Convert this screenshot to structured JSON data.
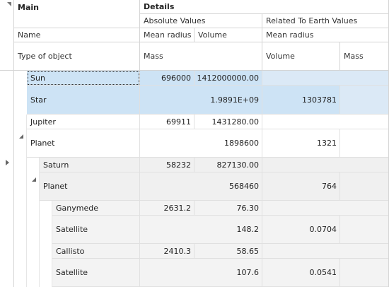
{
  "bands": {
    "main": "Main",
    "details": "Details",
    "absolute": "Absolute Values",
    "related": "Related To Earth Values"
  },
  "columns": {
    "name": "Name",
    "type": "Type of object",
    "abs_mean_radius": "Mean radius",
    "abs_volume": "Volume",
    "abs_mass": "Mass",
    "rel_mean_radius": "Mean radius",
    "rel_volume": "Volume",
    "rel_mass": "Mass"
  },
  "rows": [
    {
      "name": "Sun",
      "type": "Star",
      "mean_radius": "696000",
      "volume": "1412000000.00",
      "mass": "1.9891E+09",
      "rel_volume": "1303781",
      "rel_mean_radius": "",
      "rel_mass": ""
    },
    {
      "name": "Jupiter",
      "type": "Planet",
      "mean_radius": "69911",
      "volume": "1431280.00",
      "mass": "1898600",
      "rel_volume": "1321",
      "rel_mean_radius": "",
      "rel_mass": ""
    },
    {
      "name": "Saturn",
      "type": "Planet",
      "mean_radius": "58232",
      "volume": "827130.00",
      "mass": "568460",
      "rel_volume": "764",
      "rel_mean_radius": "",
      "rel_mass": ""
    },
    {
      "name": "Ganymede",
      "type": "Satellite",
      "mean_radius": "2631.2",
      "volume": "76.30",
      "mass": "148.2",
      "rel_volume": "0.0704",
      "rel_mean_radius": "",
      "rel_mass": ""
    },
    {
      "name": "Callisto",
      "type": "Satellite",
      "mean_radius": "2410.3",
      "volume": "58.65",
      "mass": "107.6",
      "rel_volume": "0.0541",
      "rel_mean_radius": "",
      "rel_mass": ""
    }
  ]
}
